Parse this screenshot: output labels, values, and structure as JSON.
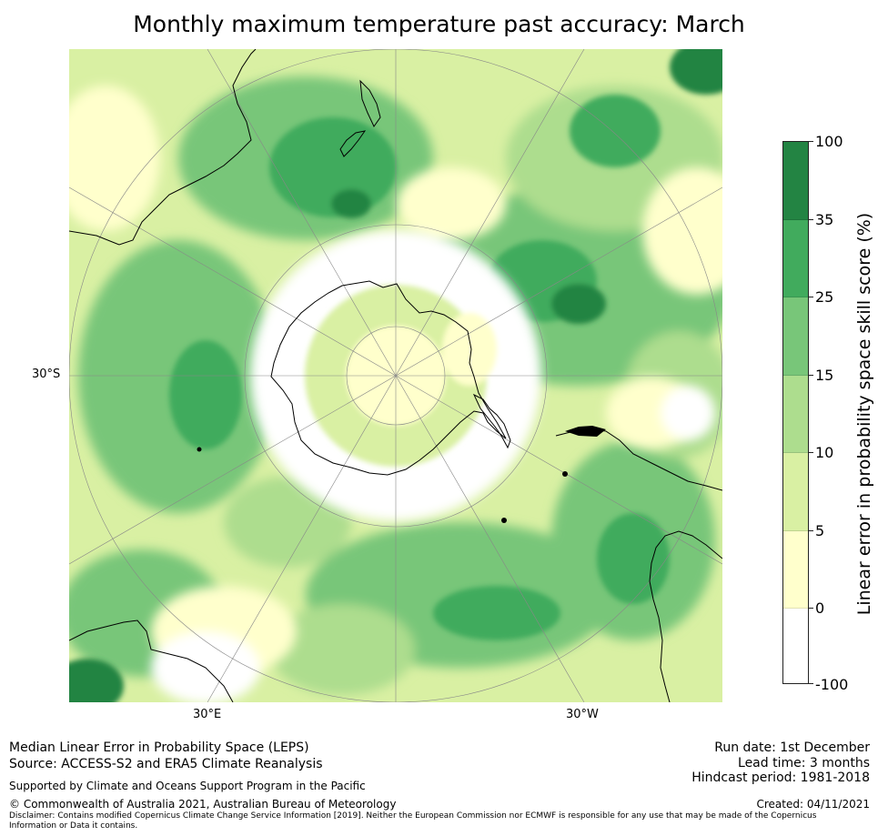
{
  "title": "Monthly maximum temperature past accuracy: March",
  "map": {
    "projection": "South polar stereographic",
    "lat_label_left": "30°S",
    "lon_label_left": "30°E",
    "lon_label_right": "30°W",
    "features": [
      "Antarctica",
      "Australia",
      "New Zealand",
      "South America",
      "Southern Africa"
    ]
  },
  "colorbar": {
    "label": "Linear error in probability space skill score (%)",
    "ticks": [
      "100",
      "35",
      "25",
      "15",
      "10",
      "5",
      "0",
      "-100"
    ],
    "bins": [
      {
        "range": "-100 to 0",
        "color": "#ffffff"
      },
      {
        "range": "0 to 5",
        "color": "#ffffcc"
      },
      {
        "range": "5 to 10",
        "color": "#d9f0a3"
      },
      {
        "range": "10 to 15",
        "color": "#addd8e"
      },
      {
        "range": "15 to 25",
        "color": "#78c679"
      },
      {
        "range": "25 to 35",
        "color": "#41ab5d"
      },
      {
        "range": "35 to 100",
        "color": "#238443"
      }
    ]
  },
  "footer": {
    "line1": "Median Linear Error in Probability Space (LEPS)",
    "line2": "Source: ACCESS-S2 and ERA5 Climate Reanalysis",
    "support": "Supported by Climate and Oceans Support Program in the Pacific",
    "copyright": "© Commonwealth of Australia 2021, Australian Bureau of Meteorology",
    "disclaimer_line1": "Disclaimer: Contains modified Copernicus Climate Change Service Information [2019]. Neither the European Commission nor ECMWF is responsible for any use that may be made of the Copernicus",
    "disclaimer_line2": "Information or Data it contains.",
    "run_date": "Run date: 1st December",
    "lead_time": "Lead time: 3 months",
    "hindcast": "Hindcast period: 1981-2018",
    "created": "Created: 04/11/2021"
  }
}
